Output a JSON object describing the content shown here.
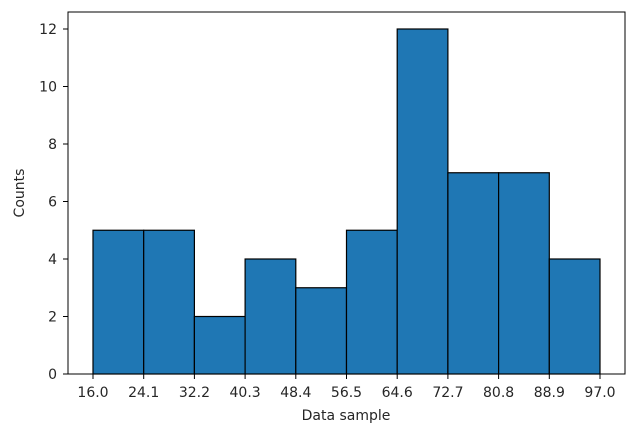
{
  "chart_data": {
    "type": "bar",
    "subtype": "histogram",
    "title": "",
    "xlabel": "Data sample",
    "ylabel": "Counts",
    "bin_edges": [
      16.0,
      24.1,
      32.2,
      40.3,
      48.4,
      56.5,
      64.6,
      72.7,
      80.8,
      88.9,
      97.0
    ],
    "x_tick_labels": [
      "16.0",
      "24.1",
      "32.2",
      "40.3",
      "48.4",
      "56.5",
      "64.6",
      "72.7",
      "80.8",
      "88.9",
      "97.0"
    ],
    "categories": [
      "16.0-24.1",
      "24.1-32.2",
      "32.2-40.3",
      "40.3-48.4",
      "48.4-56.5",
      "56.5-64.6",
      "64.6-72.7",
      "72.7-80.8",
      "80.8-88.9",
      "88.9-97.0"
    ],
    "values": [
      5,
      5,
      2,
      4,
      3,
      5,
      12,
      7,
      7,
      4
    ],
    "y_ticks": [
      0,
      2,
      4,
      6,
      8,
      10,
      12
    ],
    "ylim": [
      0,
      12.6
    ],
    "grid": false,
    "legend": null,
    "bar_color": "#1f77b4",
    "edge_color": "#000000"
  }
}
